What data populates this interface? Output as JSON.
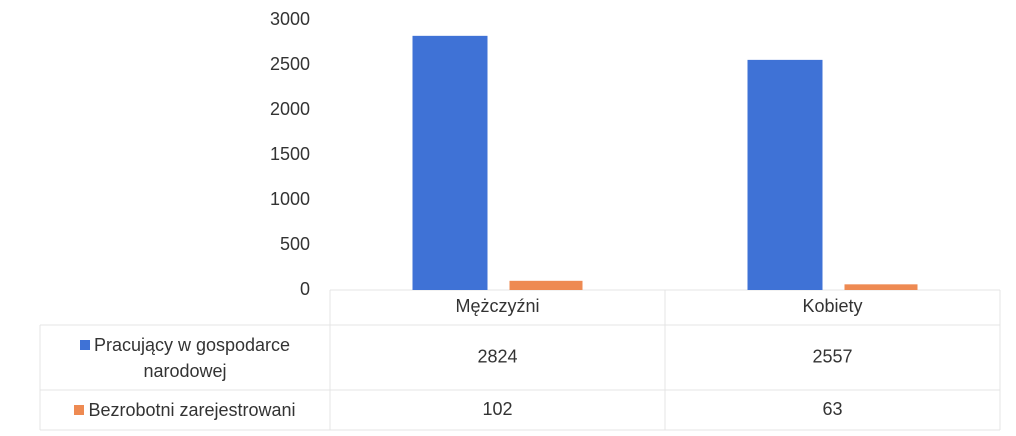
{
  "chart_data": {
    "type": "bar",
    "categories": [
      "Mężczyźni",
      "Kobiety"
    ],
    "series": [
      {
        "name": "Pracujący w gospodarce narodowej",
        "color": "#3f72d6",
        "values": [
          2824,
          2557
        ]
      },
      {
        "name": "Bezrobotni zarejestrowani",
        "color": "#ee8a52",
        "values": [
          102,
          63
        ]
      }
    ],
    "ylim": [
      0,
      3000
    ],
    "yticks": [
      0,
      500,
      1000,
      1500,
      2000,
      2500,
      3000
    ],
    "data_table": true
  }
}
